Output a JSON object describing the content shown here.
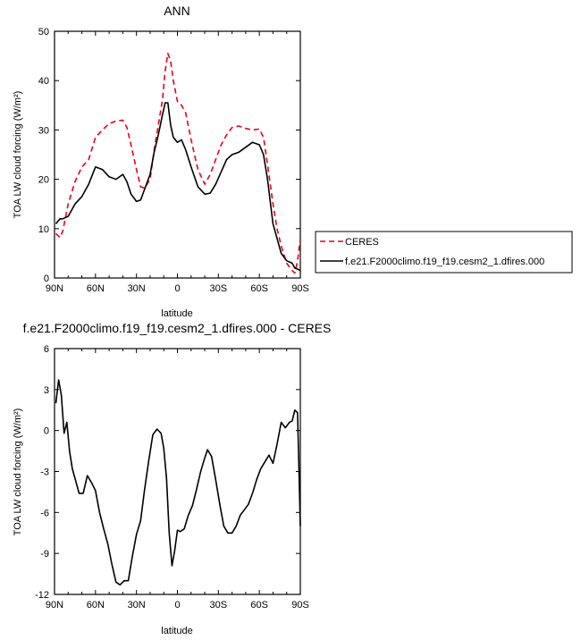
{
  "chart_data": [
    {
      "type": "line",
      "title": "ANN",
      "xlabel": "latitude",
      "ylabel": "TOA LW cloud forcing (W/m²)",
      "xlim": [
        90,
        -90
      ],
      "ylim": [
        0,
        50
      ],
      "xticks": [
        90,
        60,
        30,
        0,
        -30,
        -60,
        -90
      ],
      "xtick_labels": [
        "90N",
        "60N",
        "30N",
        "0",
        "30S",
        "60S",
        "90S"
      ],
      "yticks": [
        0,
        10,
        20,
        30,
        40,
        50
      ],
      "ytick_labels": [
        "0",
        "10",
        "20",
        "30",
        "40",
        "50"
      ],
      "legend_position": "right",
      "series": [
        {
          "name": "CERES",
          "color": "#e8001c",
          "dash": "dashed",
          "x": [
            89,
            86,
            84,
            80,
            75,
            70,
            65,
            60,
            55,
            50,
            45,
            40,
            37,
            34,
            30,
            27,
            24,
            20,
            17,
            14,
            11,
            9,
            7,
            5,
            3,
            0,
            -3,
            -6,
            -10,
            -15,
            -20,
            -24,
            -28,
            -32,
            -36,
            -40,
            -45,
            -50,
            -55,
            -60,
            -63,
            -66,
            -70,
            -73,
            -76,
            -80,
            -84,
            -86,
            -88,
            -90
          ],
          "values": [
            9,
            8.2,
            9.5,
            15,
            19.5,
            22.5,
            24,
            28.5,
            30,
            31.3,
            31.8,
            32,
            30.5,
            27,
            22,
            18.5,
            18.2,
            20,
            26,
            31,
            36,
            42,
            45.5,
            44,
            40,
            35.8,
            35,
            33.5,
            28,
            22,
            19,
            21,
            24,
            27,
            29,
            30.5,
            30.8,
            30.3,
            30,
            30.2,
            28.5,
            23,
            15,
            10,
            6.5,
            3,
            1.5,
            1,
            3.5,
            8
          ]
        },
        {
          "name": "f.e21.F2000climo.f19_f19.cesm2_1.dfires.000",
          "color": "#000000",
          "dash": "solid",
          "x": [
            89,
            86,
            84,
            80,
            75,
            70,
            65,
            60,
            55,
            50,
            45,
            40,
            37,
            34,
            30,
            27,
            24,
            20,
            17,
            14,
            11,
            9,
            7,
            5,
            3,
            0,
            -3,
            -6,
            -10,
            -15,
            -20,
            -24,
            -28,
            -32,
            -36,
            -40,
            -45,
            -50,
            -55,
            -60,
            -63,
            -66,
            -70,
            -73,
            -76,
            -80,
            -84,
            -86,
            -88,
            -90
          ],
          "values": [
            11,
            12,
            12,
            12.5,
            15,
            16.5,
            19,
            22.5,
            22,
            20.5,
            20,
            21,
            19.5,
            17,
            15.5,
            15.8,
            18,
            21,
            25.5,
            29,
            33,
            35.5,
            35.5,
            31,
            28.5,
            27.5,
            28,
            26,
            22.5,
            18.5,
            17,
            17.2,
            19,
            21.5,
            24,
            25,
            25.5,
            26.5,
            27.5,
            27,
            25,
            20,
            11,
            8,
            5,
            3.5,
            3,
            2,
            1.8,
            1.5
          ]
        }
      ]
    },
    {
      "type": "line",
      "title": "f.e21.F2000climo.f19_f19.cesm2_1.dfires.000 - CERES",
      "xlabel": "latitude",
      "ylabel": "TOA LW cloud forcing (W/m²)",
      "xlim": [
        90,
        -90
      ],
      "ylim": [
        -12,
        6
      ],
      "xticks": [
        90,
        60,
        30,
        0,
        -30,
        -60,
        -90
      ],
      "xtick_labels": [
        "90N",
        "60N",
        "30N",
        "0",
        "30S",
        "60S",
        "90S"
      ],
      "yticks": [
        -12,
        -9,
        -6,
        -3,
        0,
        3,
        6
      ],
      "ytick_labels": [
        "-12",
        "-9",
        "-6",
        "-3",
        "0",
        "3",
        "6"
      ],
      "series": [
        {
          "color": "#000000",
          "dash": "solid",
          "x": [
            89,
            87,
            85,
            83,
            81,
            79,
            77,
            75,
            72,
            69,
            66,
            63,
            60,
            57,
            54,
            51,
            48,
            45,
            42,
            39,
            36,
            33,
            30,
            27,
            24,
            21,
            18,
            15,
            12,
            10,
            8,
            6,
            4,
            2,
            0,
            -2,
            -5,
            -8,
            -11,
            -14,
            -17,
            -20,
            -22,
            -25,
            -28,
            -31,
            -34,
            -37,
            -40,
            -43,
            -46,
            -49,
            -52,
            -55,
            -58,
            -61,
            -64,
            -67,
            -70,
            -73,
            -76,
            -79,
            -82,
            -84,
            -86,
            -88,
            -90
          ],
          "values": [
            2,
            3.7,
            2.6,
            -0.2,
            0.6,
            -1.5,
            -2.8,
            -3.5,
            -4.6,
            -4.6,
            -3.3,
            -3.8,
            -4.4,
            -6,
            -7.2,
            -8.3,
            -9.8,
            -11.1,
            -11.3,
            -11,
            -11,
            -9.2,
            -7.6,
            -6.6,
            -4.3,
            -2.2,
            -0.3,
            0.1,
            -0.2,
            -1.3,
            -3.5,
            -7.5,
            -9.9,
            -8.8,
            -7.3,
            -7.4,
            -7.2,
            -6.2,
            -5.5,
            -4.3,
            -3,
            -2,
            -1.4,
            -1.9,
            -3.6,
            -5.4,
            -7,
            -7.5,
            -7.5,
            -7,
            -6.2,
            -5.8,
            -5.4,
            -4.6,
            -3.6,
            -2.8,
            -2.3,
            -1.8,
            -2.4,
            -1,
            0.6,
            0.2,
            0.6,
            0.7,
            1.5,
            1.3,
            -7
          ]
        }
      ]
    }
  ]
}
